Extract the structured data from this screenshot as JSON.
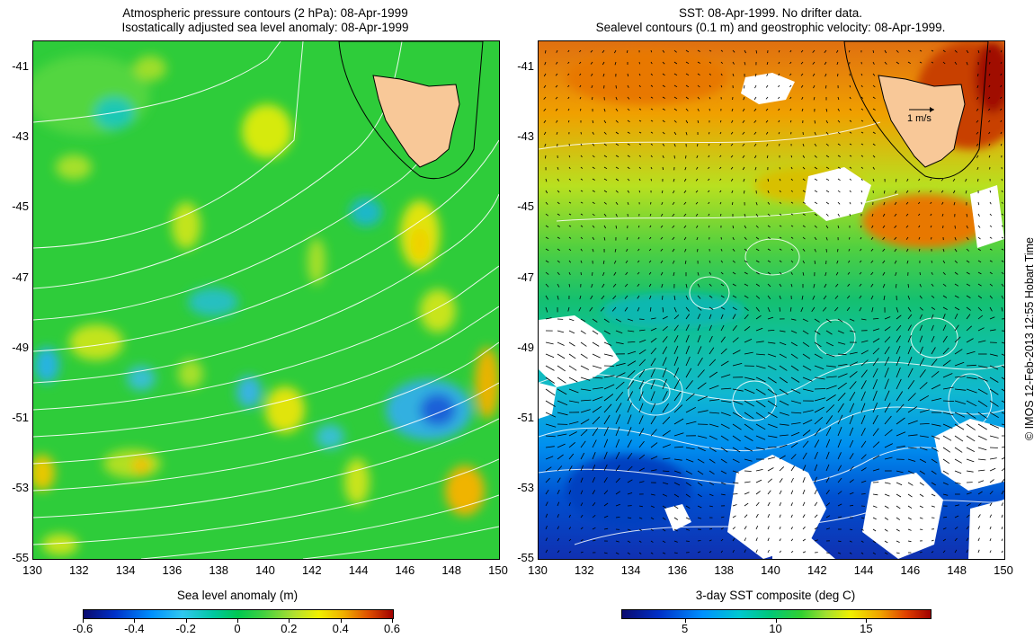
{
  "left_panel": {
    "title_line1": "Atmospheric pressure contours (2 hPa): 08-Apr-1999",
    "title_line2": "Isostatically adjusted sea level anomaly: 08-Apr-1999",
    "colorbar_title": "Sea level anomaly (m)",
    "colorbar_ticks": [
      "-0.6",
      "-0.4",
      "-0.2",
      "0",
      "0.2",
      "0.4",
      "0.6"
    ],
    "colorbar_tick_values": [
      -0.6,
      -0.4,
      -0.2,
      0,
      0.2,
      0.4,
      0.6
    ],
    "colorbar_range": [
      -0.6,
      0.6
    ]
  },
  "right_panel": {
    "title_line1": "SST: 08-Apr-1999. No drifter data.",
    "title_line2": "Sealevel contours (0.1 m) and geostrophic velocity: 08-Apr-1999.",
    "colorbar_title": "3-day SST composite (deg C)",
    "colorbar_ticks": [
      "5",
      "10",
      "15"
    ],
    "colorbar_tick_values": [
      5,
      10,
      15
    ],
    "colorbar_range": [
      1.5,
      18.5
    ],
    "velocity_scale_label": "1 m/s"
  },
  "axes": {
    "x_ticks": [
      "130",
      "132",
      "134",
      "136",
      "138",
      "140",
      "142",
      "144",
      "146",
      "148",
      "150"
    ],
    "y_ticks": [
      "-41",
      "-43",
      "-45",
      "-47",
      "-49",
      "-51",
      "-53",
      "-55"
    ],
    "lon_range": [
      130,
      150
    ],
    "lat_range": [
      -55,
      -40.25
    ]
  },
  "credit": "© IMOS 12-Feb-2013 12:55 Hobart Time",
  "colors": {
    "land": "#f8c898",
    "no_data": "#ffffff",
    "contour": "#ffffff",
    "coastline": "#000000"
  }
}
